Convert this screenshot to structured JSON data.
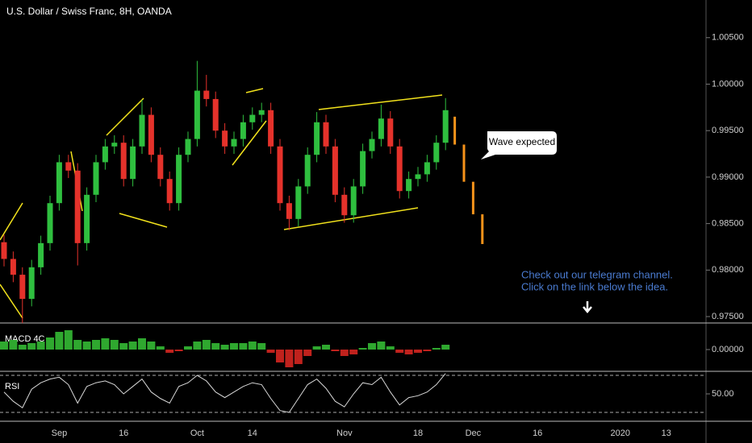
{
  "chart_data": [
    {
      "type": "candlestick",
      "title": "U.S. Dollar / Swiss Franc, 8H, OANDA",
      "categories": [
        null,
        null,
        null,
        null,
        null,
        null,
        "Sep",
        null,
        null,
        null,
        null,
        null,
        null,
        "16",
        null,
        null,
        null,
        null,
        null,
        null,
        null,
        "Oct",
        null,
        null,
        null,
        null,
        null,
        "14",
        null,
        null,
        null,
        null,
        null,
        null,
        null,
        null,
        null,
        "Nov",
        null,
        null,
        null,
        null,
        null,
        null,
        null,
        "18",
        null,
        null,
        null,
        null,
        null,
        "Dec",
        null,
        null,
        null,
        null,
        null,
        null,
        "16",
        null,
        null,
        null,
        null,
        null,
        null,
        null,
        null,
        "2020",
        null,
        null,
        null,
        null,
        "13",
        null,
        null,
        null
      ],
      "open": [
        0.983,
        0.9812,
        0.9795,
        0.9769,
        0.9803,
        0.9829,
        0.9872,
        0.9916,
        0.9907,
        0.9829,
        0.9881,
        0.9916,
        0.9933,
        0.9937,
        0.9898,
        0.9933,
        0.9967,
        0.9924,
        0.9898,
        0.9872,
        0.9924,
        0.9941,
        0.9993,
        0.9984,
        0.995,
        0.9933,
        0.9941,
        0.9959,
        0.9967,
        0.9972,
        0.9933,
        0.9872,
        0.9855,
        0.989,
        0.9924,
        0.9959,
        0.9933,
        0.9881,
        0.9859,
        0.989,
        0.9928,
        0.9941,
        0.9963,
        0.9933,
        0.9885,
        0.9898,
        0.9903,
        0.9916,
        0.9937,
        null,
        null,
        null,
        null,
        null,
        null,
        null,
        null,
        null,
        null,
        null,
        null,
        null,
        null,
        null,
        null,
        null,
        null,
        null,
        null,
        null,
        null,
        null,
        null,
        null,
        null,
        null
      ],
      "high": [
        0.9838,
        0.982,
        0.9803,
        0.9811,
        0.9837,
        0.988,
        0.9924,
        0.9924,
        0.9915,
        0.9889,
        0.9924,
        0.9941,
        0.9945,
        0.9945,
        0.9941,
        0.9983,
        0.9975,
        0.9932,
        0.9906,
        0.9932,
        0.9949,
        1.0025,
        1.001,
        0.9992,
        0.9958,
        0.9949,
        0.9967,
        0.9975,
        0.998,
        0.998,
        0.9941,
        0.988,
        0.9898,
        0.9932,
        0.997,
        0.9967,
        0.9941,
        0.9889,
        0.9898,
        0.9936,
        0.9949,
        0.9978,
        0.9971,
        0.9941,
        0.9906,
        0.9911,
        0.9924,
        0.9945,
        0.9985,
        null,
        null,
        null,
        null,
        null,
        null,
        null,
        null,
        null,
        null,
        null,
        null,
        null,
        null,
        null,
        null,
        null,
        null,
        null,
        null,
        null,
        null,
        null,
        null,
        null,
        null,
        null
      ],
      "low": [
        0.9804,
        0.9787,
        0.9743,
        0.9761,
        0.9795,
        0.9821,
        0.9864,
        0.9899,
        0.9805,
        0.9821,
        0.9873,
        0.9908,
        0.9925,
        0.989,
        0.989,
        0.9925,
        0.9916,
        0.989,
        0.9864,
        0.9864,
        0.9916,
        0.9933,
        0.9976,
        0.9942,
        0.9925,
        0.9925,
        0.9933,
        0.9951,
        0.9959,
        0.9925,
        0.9864,
        0.9843,
        0.9847,
        0.9882,
        0.9916,
        0.9925,
        0.9873,
        0.9851,
        0.9851,
        0.9882,
        0.992,
        0.9933,
        0.9925,
        0.9877,
        0.9877,
        0.989,
        0.9895,
        0.9908,
        0.9929,
        null,
        null,
        null,
        null,
        null,
        null,
        null,
        null,
        null,
        null,
        null,
        null,
        null,
        null,
        null,
        null,
        null,
        null,
        null,
        null,
        null,
        null,
        null,
        null,
        null,
        null,
        null
      ],
      "close": [
        0.9812,
        0.9795,
        0.9769,
        0.9803,
        0.9829,
        0.9872,
        0.9916,
        0.9907,
        0.9829,
        0.9881,
        0.9916,
        0.9933,
        0.9937,
        0.9898,
        0.9933,
        0.9967,
        0.9924,
        0.9898,
        0.9872,
        0.9924,
        0.9941,
        0.9993,
        0.9984,
        0.995,
        0.9933,
        0.9941,
        0.9959,
        0.9967,
        0.9972,
        0.9933,
        0.9872,
        0.9855,
        0.989,
        0.9924,
        0.9959,
        0.9933,
        0.9881,
        0.9859,
        0.989,
        0.9928,
        0.9941,
        0.9963,
        0.9933,
        0.9885,
        0.9898,
        0.9903,
        0.9916,
        0.9937,
        0.9972,
        null,
        null,
        null,
        null,
        null,
        null,
        null,
        null,
        null,
        null,
        null,
        null,
        null,
        null,
        null,
        null,
        null,
        null,
        null,
        null,
        null,
        null,
        null,
        null,
        null,
        null,
        null
      ],
      "projection": {
        "color": "#f7931a",
        "high": [
          null,
          null,
          null,
          null,
          null,
          null,
          null,
          null,
          null,
          null,
          null,
          null,
          null,
          null,
          null,
          null,
          null,
          null,
          null,
          null,
          null,
          null,
          null,
          null,
          null,
          null,
          null,
          null,
          null,
          null,
          null,
          null,
          null,
          null,
          null,
          null,
          null,
          null,
          null,
          null,
          null,
          null,
          null,
          null,
          null,
          null,
          null,
          null,
          null,
          0.9965,
          0.9935,
          0.9895,
          0.986,
          null,
          null,
          null,
          null,
          null,
          null,
          null,
          null,
          null,
          null,
          null,
          null,
          null,
          null,
          null,
          null,
          null,
          null,
          null,
          null,
          null,
          null,
          null
        ],
        "low": [
          null,
          null,
          null,
          null,
          null,
          null,
          null,
          null,
          null,
          null,
          null,
          null,
          null,
          null,
          null,
          null,
          null,
          null,
          null,
          null,
          null,
          null,
          null,
          null,
          null,
          null,
          null,
          null,
          null,
          null,
          null,
          null,
          null,
          null,
          null,
          null,
          null,
          null,
          null,
          null,
          null,
          null,
          null,
          null,
          null,
          null,
          null,
          null,
          null,
          0.9935,
          0.9895,
          0.986,
          0.9828,
          null,
          null,
          null,
          null,
          null,
          null,
          null,
          null,
          null,
          null,
          null,
          null,
          null,
          null,
          null,
          null,
          null,
          null,
          null,
          null,
          null,
          null,
          null
        ]
      },
      "up_color": "#2fbf3f",
      "down_color": "#e5322b",
      "ylim": [
        0.97431,
        1.00905
      ],
      "yticks": [
        {
          "value": 0.975,
          "label": "0.97500"
        },
        {
          "value": 0.98,
          "label": "0.98000"
        },
        {
          "value": 0.985,
          "label": "0.98500"
        },
        {
          "value": 0.99,
          "label": "0.99000"
        },
        {
          "value": 0.995,
          "label": "0.99500"
        },
        {
          "value": 1.0,
          "label": "1.00000"
        },
        {
          "value": 1.005,
          "label": "1.00500"
        }
      ],
      "annotations": [
        "Wave expected",
        "Check out our telegram channel.",
        "Click on the link below the idea."
      ]
    },
    {
      "type": "histogram",
      "title": "MACD 4C",
      "values": [
        0.001,
        0.0012,
        0.0006,
        0.0008,
        0.001,
        0.0015,
        0.0022,
        0.0024,
        0.0012,
        0.001,
        0.0012,
        0.0014,
        0.0012,
        0.0008,
        0.001,
        0.0014,
        0.001,
        0.0004,
        -0.0004,
        -0.0002,
        0.0004,
        0.001,
        0.0012,
        0.0008,
        0.0006,
        0.0008,
        0.0008,
        0.001,
        0.0008,
        -0.0004,
        -0.0016,
        -0.0022,
        -0.0018,
        -0.0008,
        0.0004,
        0.0006,
        -0.0002,
        -0.0008,
        -0.0006,
        0.0002,
        0.0008,
        0.001,
        0.0004,
        -0.0004,
        -0.0006,
        -0.0004,
        -0.0002,
        0.0002,
        0.0006
      ],
      "positive_color": "#2fa82f",
      "negative_color": "#c0221d",
      "ylim": [
        -0.0026,
        0.0031
      ],
      "yticks": [
        {
          "value": 0,
          "label": "0.00000"
        }
      ]
    },
    {
      "type": "line",
      "title": "RSI",
      "values": [
        52,
        42,
        35,
        55,
        62,
        66,
        68,
        60,
        40,
        58,
        62,
        64,
        60,
        50,
        58,
        66,
        52,
        45,
        40,
        58,
        62,
        70,
        64,
        52,
        46,
        52,
        58,
        62,
        60,
        45,
        32,
        30,
        45,
        60,
        66,
        56,
        42,
        36,
        50,
        62,
        60,
        68,
        52,
        38,
        46,
        48,
        52,
        60,
        72
      ],
      "color": "#d8d8d8",
      "levels": [
        70,
        30
      ],
      "ylim": [
        21.3,
        73.5
      ],
      "yticks": [
        {
          "value": 50,
          "label": "50.00"
        }
      ]
    }
  ]
}
